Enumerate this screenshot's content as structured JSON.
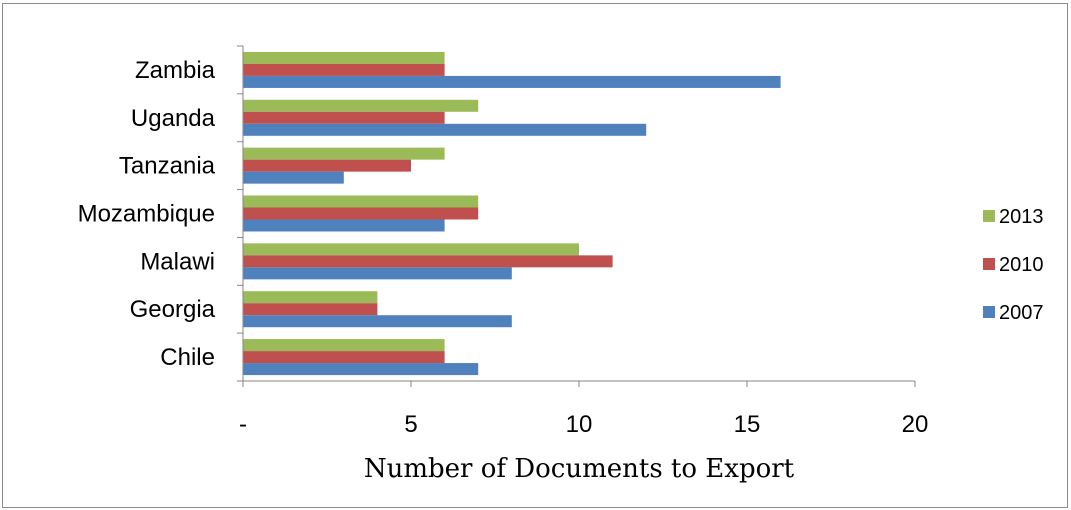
{
  "chart_data": {
    "type": "bar",
    "orientation": "horizontal",
    "categories": [
      "Chile",
      "Georgia",
      "Malawi",
      "Mozambique",
      "Tanzania",
      "Uganda",
      "Zambia"
    ],
    "series": [
      {
        "name": "2007",
        "color": "#4f81bd",
        "values": [
          7,
          8,
          8,
          6,
          3,
          12,
          16
        ]
      },
      {
        "name": "2010",
        "color": "#c0504d",
        "values": [
          6,
          4,
          11,
          7,
          5,
          6,
          6
        ]
      },
      {
        "name": "2013",
        "color": "#9bbb59",
        "values": [
          6,
          4,
          10,
          7,
          6,
          7,
          6
        ]
      }
    ],
    "xlabel": "Number of Documents to Export",
    "ylabel": "",
    "xlim": [
      0,
      20
    ],
    "xticks": [
      0,
      5,
      10,
      15,
      20
    ],
    "xtick_labels": [
      "-",
      "5",
      "10",
      "15",
      "20"
    ],
    "legend": {
      "position": "right",
      "order": [
        "2013",
        "2010",
        "2007"
      ]
    },
    "grid": false
  }
}
